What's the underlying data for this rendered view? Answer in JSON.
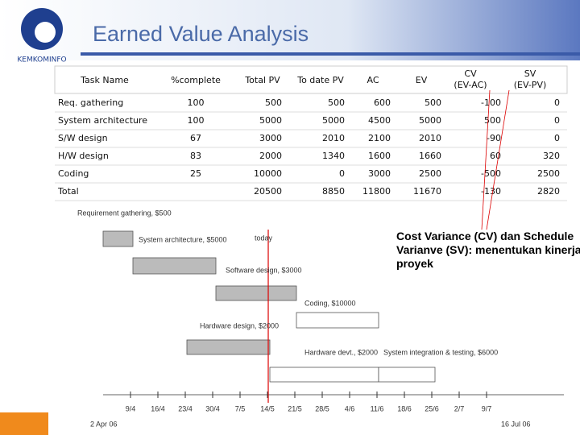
{
  "header": {
    "title": "Earned Value Analysis",
    "logo": "KEMKOMINFO"
  },
  "table": {
    "columns": [
      "Task Name",
      "%complete",
      "Total PV",
      "To date PV",
      "AC",
      "EV",
      "CV (EV-AC)",
      "SV (EV-PV)"
    ],
    "rows": [
      [
        "Req. gathering",
        100,
        500,
        500,
        600,
        500,
        -100,
        0
      ],
      [
        "System architecture",
        100,
        5000,
        5000,
        4500,
        5000,
        500,
        0
      ],
      [
        "S/W design",
        67,
        3000,
        2010,
        2100,
        2010,
        -90,
        0
      ],
      [
        "H/W design",
        83,
        2000,
        1340,
        1600,
        1660,
        60,
        320
      ],
      [
        "Coding",
        25,
        10000,
        0,
        3000,
        2500,
        -500,
        2500
      ],
      [
        "Total",
        null,
        20500,
        8850,
        11800,
        11670,
        -130,
        2820
      ]
    ]
  },
  "gantt": {
    "tasks": [
      "Requirement gathering, $500",
      "System architecture, $5000",
      "Software design, $3000",
      "Coding, $10000",
      "Hardware design, $2000",
      "Hardware devt., $2000",
      "System integration & testing, $6000"
    ],
    "today": "today",
    "dates": [
      "9/4",
      "16/4",
      "23/4",
      "30/4",
      "7/5",
      "14/5",
      "21/5",
      "28/5",
      "4/6",
      "11/6",
      "18/6",
      "25/6",
      "2/7",
      "9/7"
    ],
    "start": "2 Apr 06",
    "end": "16 Jul 06"
  },
  "annotation": "Cost Variance (CV) dan Schedule Varianve (SV): menentukan kinerja proyek"
}
